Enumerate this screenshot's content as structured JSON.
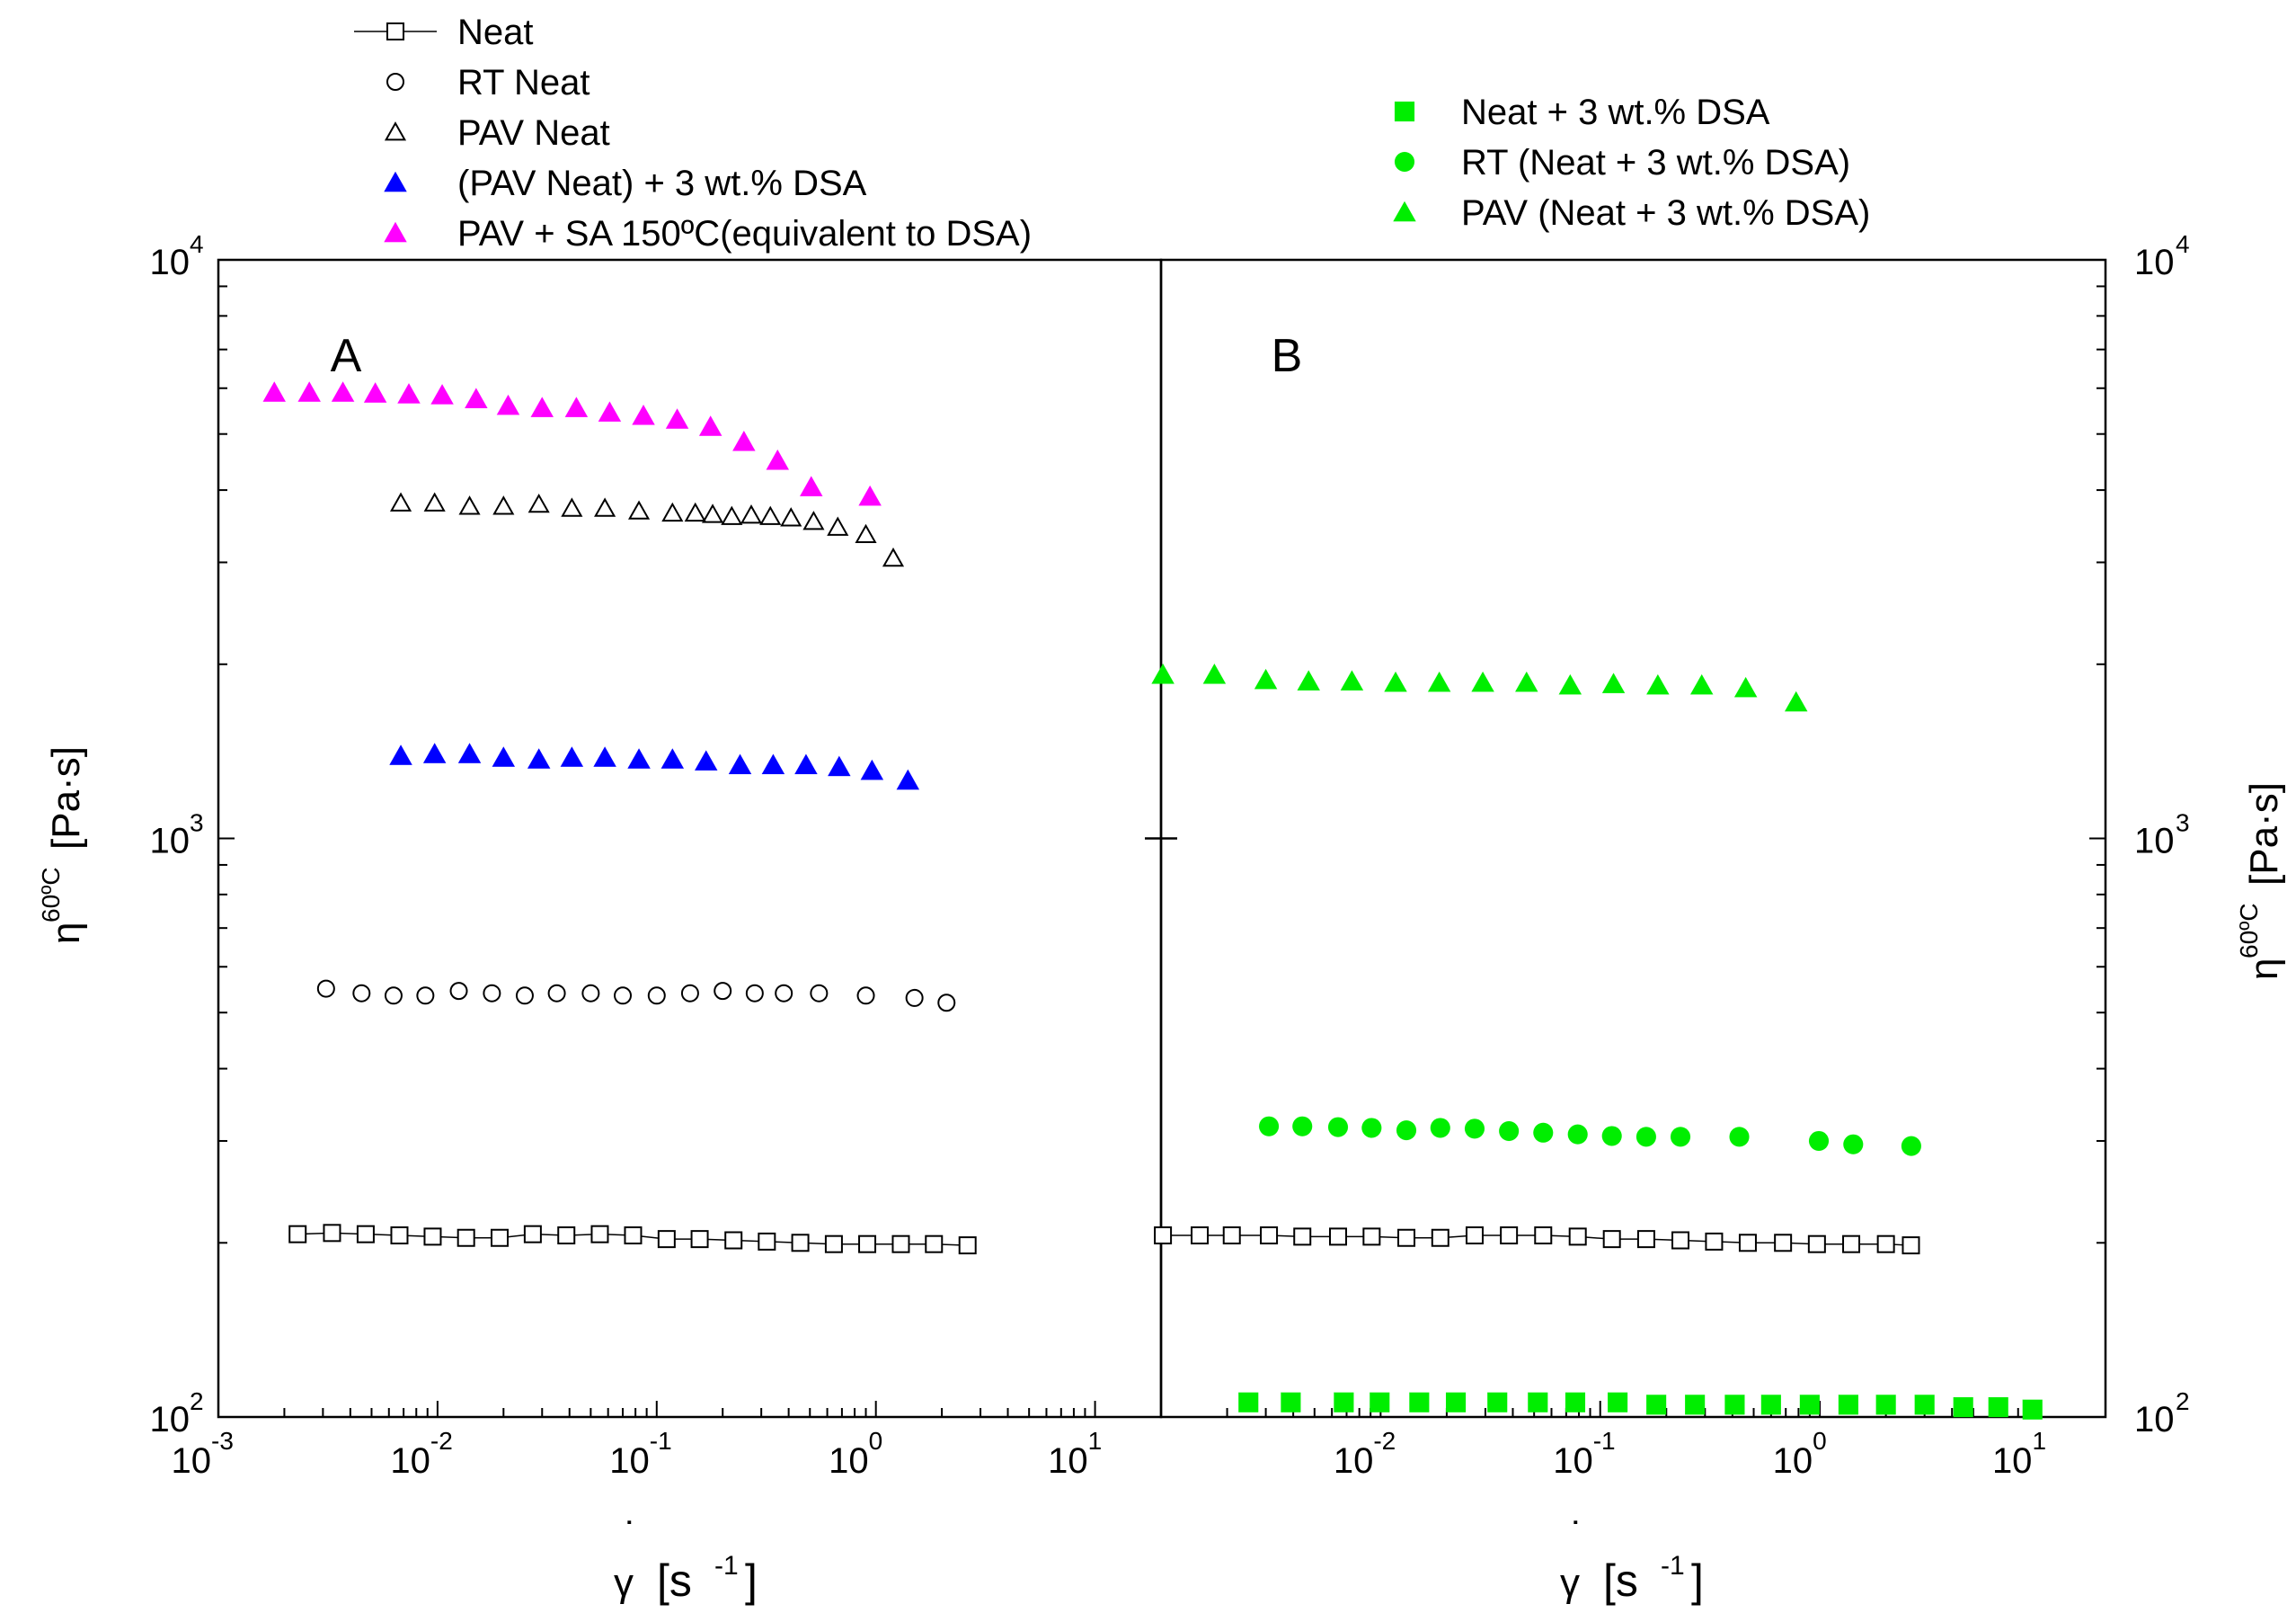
{
  "legend_left": [
    {
      "marker": "open-square-line",
      "label": "Neat",
      "color": "#000000"
    },
    {
      "marker": "open-circle",
      "label": "RT Neat",
      "color": "#000000"
    },
    {
      "marker": "open-triangle",
      "label": "PAV Neat",
      "color": "#000000"
    },
    {
      "marker": "filled-triangle",
      "label": "(PAV Neat) + 3 wt.% DSA",
      "color": "#0000ff"
    },
    {
      "marker": "filled-triangle",
      "label": "PAV + SA 150ºC(equivalent to DSA)",
      "color": "#ff00ff"
    }
  ],
  "legend_right": [
    {
      "marker": "filled-square",
      "label": "Neat + 3 wt.% DSA",
      "color": "#00ee00"
    },
    {
      "marker": "filled-circle",
      "label": "RT (Neat + 3 wt.% DSA)",
      "color": "#00ee00"
    },
    {
      "marker": "filled-triangle",
      "label": "PAV (Neat + 3 wt.% DSA)",
      "color": "#00ee00"
    }
  ],
  "axes": {
    "x_label_symbol": "γ",
    "x_label_unit": "[s",
    "x_label_exp": "-1",
    "x_label_close": "]",
    "y_label_symbol": "η",
    "y_label_sup": "60ºC",
    "y_label_unit": "[Pa·s]",
    "x_tick_base": "10",
    "y_tick_base": "10"
  },
  "chart_data": [
    {
      "type": "scatter",
      "panel_label": "A",
      "x_scale": "log",
      "y_scale": "log",
      "xlim": [
        0.001,
        20
      ],
      "ylim": [
        100,
        10000
      ],
      "x_ticks": [
        {
          "base": "10",
          "exp": "-3"
        },
        {
          "base": "10",
          "exp": "-2"
        },
        {
          "base": "10",
          "exp": "-1"
        },
        {
          "base": "10",
          "exp": "0"
        },
        {
          "base": "10",
          "exp": "1"
        }
      ],
      "y_ticks": [
        {
          "base": "10",
          "exp": "2"
        },
        {
          "base": "10",
          "exp": "3"
        },
        {
          "base": "10",
          "exp": "4"
        }
      ],
      "series": [
        {
          "name": "PAV + SA 150ºC(equivalent to DSA)",
          "marker": "filled-triangle",
          "color": "#ff00ff",
          "x": [
            0.0018,
            0.0026,
            0.0037,
            0.0052,
            0.0074,
            0.0105,
            0.015,
            0.021,
            0.03,
            0.043,
            0.061,
            0.087,
            0.124,
            0.176,
            0.25,
            0.356,
            0.507,
            0.94
          ],
          "y": [
            5900,
            5900,
            5900,
            5880,
            5860,
            5840,
            5750,
            5600,
            5550,
            5550,
            5450,
            5380,
            5300,
            5150,
            4850,
            4500,
            4050,
            3900
          ]
        },
        {
          "name": "PAV Neat",
          "marker": "open-triangle",
          "color": "#000000",
          "x": [
            0.0068,
            0.0097,
            0.014,
            0.02,
            0.029,
            0.041,
            0.058,
            0.083,
            0.118,
            0.15,
            0.18,
            0.22,
            0.27,
            0.33,
            0.41,
            0.52,
            0.67,
            0.9,
            1.2
          ],
          "y": [
            3800,
            3800,
            3750,
            3750,
            3780,
            3720,
            3720,
            3680,
            3650,
            3650,
            3630,
            3600,
            3620,
            3600,
            3580,
            3530,
            3450,
            3350,
            3050
          ]
        },
        {
          "name": "(PAV Neat) + 3 wt.% DSA",
          "marker": "filled-triangle",
          "color": "#0000ff",
          "x": [
            0.0068,
            0.0097,
            0.014,
            0.02,
            0.029,
            0.041,
            0.058,
            0.083,
            0.118,
            0.168,
            0.24,
            0.34,
            0.48,
            0.68,
            0.96,
            1.4
          ],
          "y": [
            1390,
            1400,
            1400,
            1380,
            1370,
            1380,
            1380,
            1370,
            1370,
            1360,
            1340,
            1340,
            1340,
            1330,
            1310,
            1260
          ]
        },
        {
          "name": "RT Neat",
          "marker": "open-circle",
          "color": "#000000",
          "x": [
            0.0031,
            0.0045,
            0.0063,
            0.0088,
            0.0125,
            0.0177,
            0.025,
            0.035,
            0.05,
            0.07,
            0.1,
            0.142,
            0.2,
            0.28,
            0.38,
            0.55,
            0.9,
            1.5,
            2.1
          ],
          "y": [
            550,
            540,
            535,
            535,
            545,
            540,
            535,
            540,
            540,
            535,
            535,
            540,
            545,
            540,
            540,
            540,
            535,
            530,
            520
          ]
        },
        {
          "name": "Neat",
          "marker": "open-square-line",
          "color": "#000000",
          "x": [
            0.0023,
            0.0033,
            0.0047,
            0.0067,
            0.0095,
            0.0135,
            0.0192,
            0.0272,
            0.0387,
            0.055,
            0.078,
            0.111,
            0.157,
            0.224,
            0.318,
            0.452,
            0.643,
            0.913,
            1.3,
            1.84,
            2.62
          ],
          "y": [
            207,
            208,
            207,
            206,
            205,
            204,
            204,
            207,
            206,
            207,
            206,
            203,
            203,
            202,
            201,
            200,
            199,
            199,
            199,
            199,
            198
          ]
        }
      ]
    },
    {
      "type": "scatter",
      "panel_label": "B",
      "x_scale": "log",
      "y_scale": "log",
      "xlim": [
        0.001,
        20
      ],
      "ylim": [
        100,
        10000
      ],
      "x_ticks": [
        {
          "base": "10",
          "exp": "-2"
        },
        {
          "base": "10",
          "exp": "-1"
        },
        {
          "base": "10",
          "exp": "0"
        },
        {
          "base": "10",
          "exp": "1"
        }
      ],
      "y_ticks": [
        {
          "base": "10",
          "exp": "2"
        },
        {
          "base": "10",
          "exp": "3"
        },
        {
          "base": "10",
          "exp": "4"
        }
      ],
      "series": [
        {
          "name": "PAV (Neat + 3 wt.% DSA)",
          "marker": "filled-triangle",
          "color": "#00ee00",
          "x": [
            0.00102,
            0.00175,
            0.003,
            0.0047,
            0.0074,
            0.0117,
            0.0185,
            0.0292,
            0.0462,
            0.073,
            0.115,
            0.183,
            0.29,
            0.46,
            0.78
          ],
          "y": [
            1920,
            1920,
            1880,
            1870,
            1870,
            1860,
            1860,
            1860,
            1860,
            1840,
            1850,
            1840,
            1840,
            1820,
            1720
          ]
        },
        {
          "name": "RT (Neat + 3 wt.% DSA)",
          "marker": "filled-circle",
          "color": "#00ee00",
          "x": [
            0.0031,
            0.0044,
            0.0064,
            0.0091,
            0.0131,
            0.0187,
            0.0268,
            0.0384,
            0.055,
            0.079,
            0.113,
            0.162,
            0.232,
            0.43,
            0.99,
            1.42,
            2.61
          ],
          "y": [
            318,
            318,
            317,
            316,
            313,
            316,
            315,
            312,
            310,
            308,
            306,
            305,
            305,
            305,
            300,
            296,
            294
          ]
        },
        {
          "name": "Neat",
          "marker": "open-square-line",
          "color": "#000000",
          "x": [
            0.00102,
            0.0015,
            0.0021,
            0.0031,
            0.0044,
            0.0064,
            0.0091,
            0.0131,
            0.0187,
            0.0268,
            0.0384,
            0.055,
            0.079,
            0.113,
            0.162,
            0.232,
            0.33,
            0.47,
            0.68,
            0.97,
            1.39,
            2.0,
            2.6
          ],
          "y": [
            206,
            206,
            206,
            206,
            205,
            205,
            205,
            204,
            204,
            206,
            206,
            206,
            205,
            203,
            203,
            202,
            201,
            200,
            200,
            199,
            199,
            199,
            198
          ]
        },
        {
          "name": "Neat + 3 wt.% DSA",
          "marker": "filled-square",
          "color": "#00ee00",
          "x": [
            0.0025,
            0.0039,
            0.0068,
            0.0099,
            0.015,
            0.022,
            0.034,
            0.052,
            0.077,
            0.12,
            0.18,
            0.27,
            0.41,
            0.6,
            0.9,
            1.35,
            2.0,
            3.0,
            4.5,
            6.5,
            9.3
          ],
          "y": [
            106,
            106,
            106,
            106,
            106,
            106,
            106,
            106,
            106,
            106,
            105,
            105,
            105,
            105,
            105,
            105,
            105,
            105,
            104,
            104,
            103
          ]
        }
      ]
    }
  ]
}
